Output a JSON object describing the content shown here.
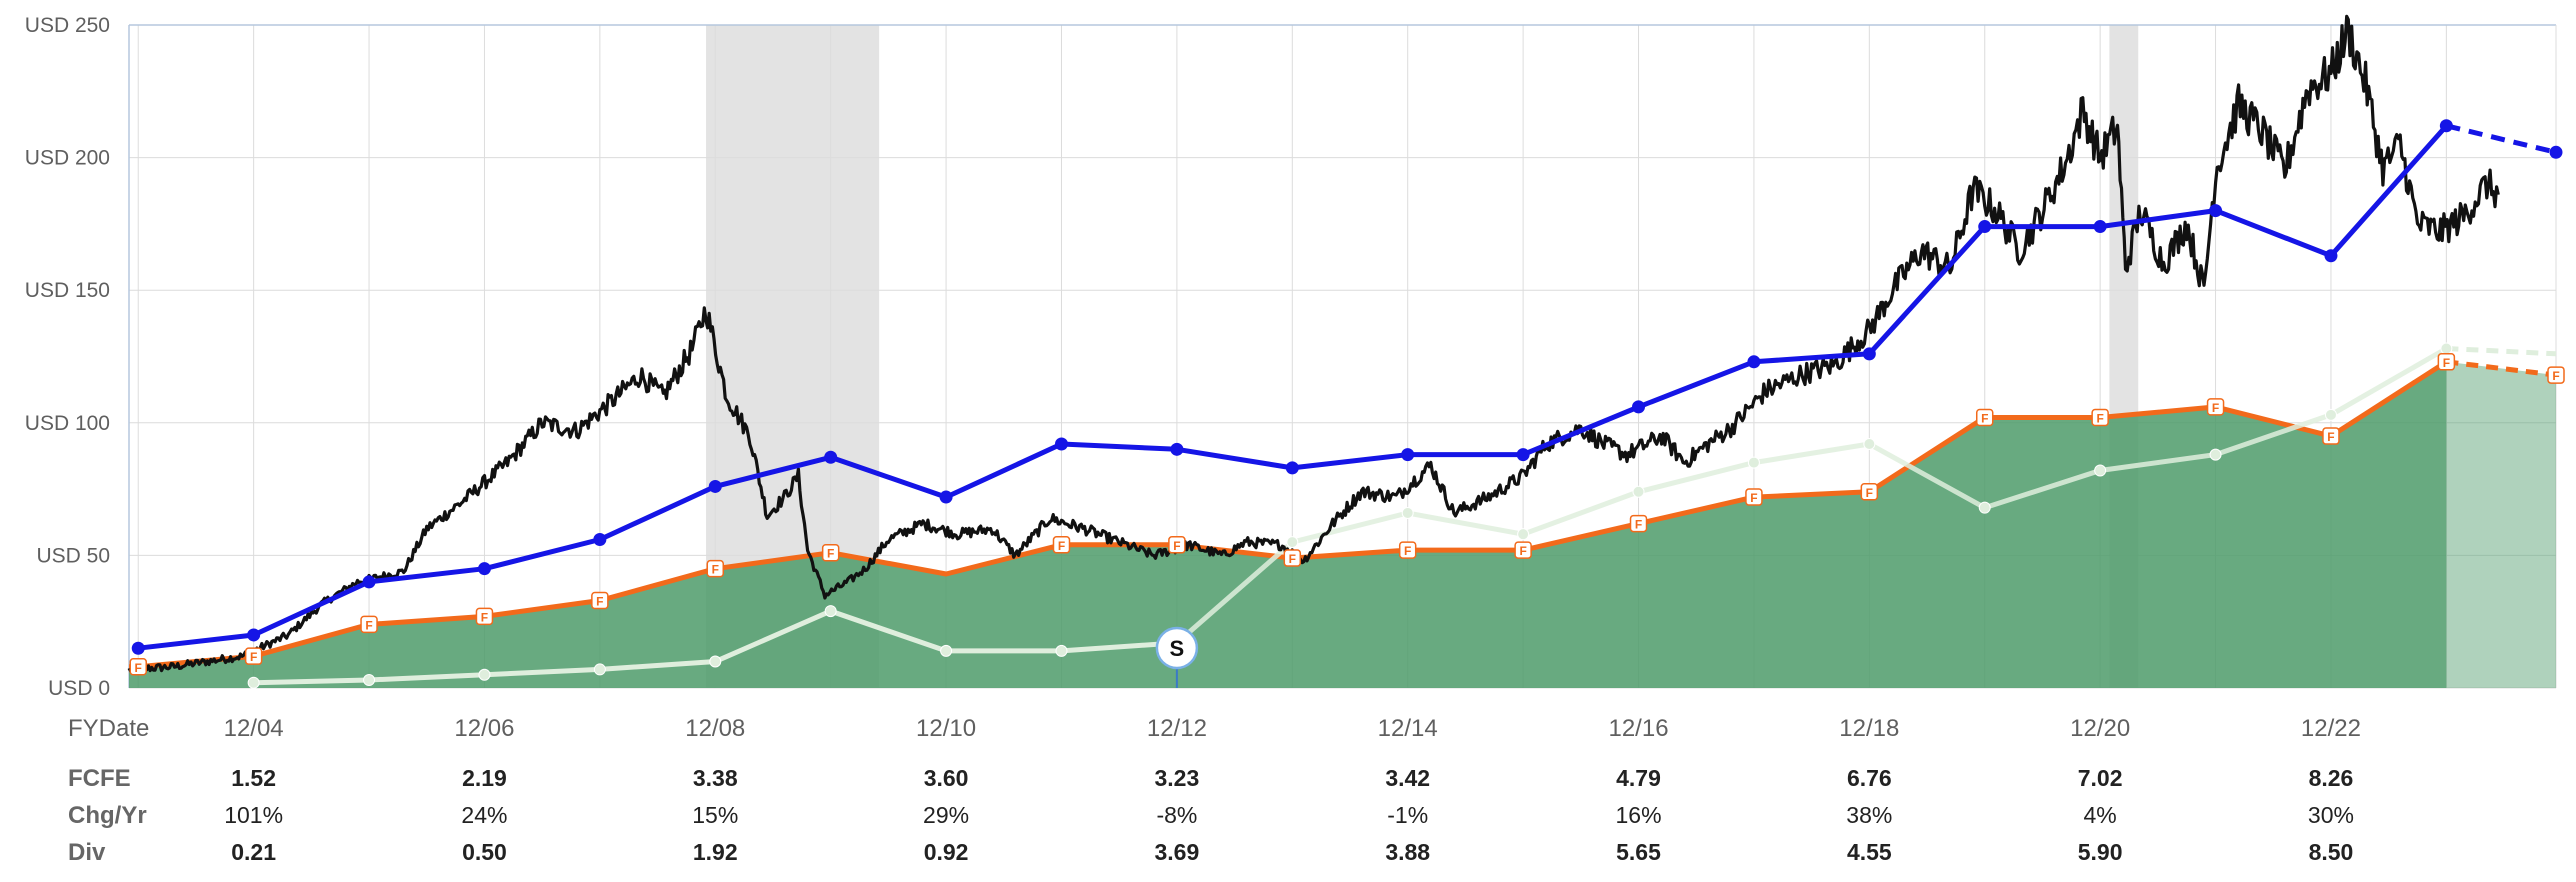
{
  "chart_data": {
    "type": "line",
    "y_axis": {
      "min": 0,
      "max": 250,
      "ticks": [
        {
          "value": 0,
          "label": "USD 0"
        },
        {
          "value": 50,
          "label": "USD 50"
        },
        {
          "value": 100,
          "label": "USD 100"
        },
        {
          "value": 150,
          "label": "USD 150"
        },
        {
          "value": 200,
          "label": "USD 200"
        },
        {
          "value": 250,
          "label": "USD 250"
        }
      ]
    },
    "x_axis": {
      "min": 2002.92,
      "max": 2023.95,
      "first_label": "FYDate",
      "ticks": [
        {
          "value": 2004,
          "label": "12/04"
        },
        {
          "value": 2006,
          "label": "12/06"
        },
        {
          "value": 2008,
          "label": "12/08"
        },
        {
          "value": 2010,
          "label": "12/10"
        },
        {
          "value": 2012,
          "label": "12/12"
        },
        {
          "value": 2014,
          "label": "12/14"
        },
        {
          "value": 2016,
          "label": "12/16"
        },
        {
          "value": 2018,
          "label": "12/18"
        },
        {
          "value": 2020,
          "label": "12/20"
        },
        {
          "value": 2022,
          "label": "12/22"
        }
      ],
      "minor_ticks": [
        2003,
        2005,
        2007,
        2009,
        2011,
        2013,
        2015,
        2017,
        2019,
        2021,
        2023,
        2023.95
      ]
    },
    "recessions": [
      [
        2007.92,
        2009.42
      ],
      [
        2020.08,
        2020.33
      ]
    ],
    "fair_value_area": {
      "color": "#4e9b6a",
      "points": [
        [
          2002.92,
          8
        ],
        [
          2003,
          8
        ],
        [
          2004,
          12
        ],
        [
          2005,
          24
        ],
        [
          2006,
          27
        ],
        [
          2007,
          33
        ],
        [
          2008,
          45
        ],
        [
          2009,
          51
        ],
        [
          2010,
          43
        ],
        [
          2011,
          54
        ],
        [
          2012,
          54
        ],
        [
          2013,
          49
        ],
        [
          2014,
          52
        ],
        [
          2015,
          52
        ],
        [
          2016,
          62
        ],
        [
          2017,
          72
        ],
        [
          2018,
          74
        ],
        [
          2019,
          102
        ],
        [
          2020,
          102
        ],
        [
          2021,
          106
        ],
        [
          2022,
          95
        ],
        [
          2023,
          123
        ]
      ],
      "estimate_points": [
        [
          2023,
          123
        ],
        [
          2023.95,
          118
        ]
      ],
      "markers": [
        "2003",
        "2004",
        "2005",
        "2006",
        "2007",
        "2008",
        "2009",
        "2011",
        "2012",
        "2013",
        "2014",
        "2015",
        "2016",
        "2017",
        "2018",
        "2019",
        "2020",
        "2021",
        "2022",
        "2023",
        "2023.95"
      ],
      "marker_label": "F"
    },
    "series": [
      {
        "key": "blue",
        "color": "#1515e6",
        "points": [
          [
            2003,
            15
          ],
          [
            2004,
            20
          ],
          [
            2005,
            40
          ],
          [
            2006,
            45
          ],
          [
            2007,
            56
          ],
          [
            2008,
            76
          ],
          [
            2009,
            87
          ],
          [
            2010,
            72
          ],
          [
            2011,
            92
          ],
          [
            2012,
            90
          ],
          [
            2013,
            83
          ],
          [
            2014,
            88
          ],
          [
            2015,
            88
          ],
          [
            2016,
            106
          ],
          [
            2017,
            123
          ],
          [
            2018,
            126
          ],
          [
            2019,
            174
          ],
          [
            2020,
            174
          ],
          [
            2021,
            180
          ],
          [
            2022,
            163
          ],
          [
            2023,
            212
          ]
        ],
        "estimate_points": [
          [
            2023,
            212
          ],
          [
            2023.95,
            202
          ]
        ]
      },
      {
        "key": "white",
        "color": "#dfeedd",
        "points": [
          [
            2004,
            2
          ],
          [
            2005,
            3
          ],
          [
            2006,
            5
          ],
          [
            2007,
            7
          ],
          [
            2008,
            10
          ],
          [
            2009,
            29
          ],
          [
            2010,
            14
          ],
          [
            2011,
            14
          ],
          [
            2012,
            17
          ],
          [
            2013,
            55
          ],
          [
            2014,
            66
          ],
          [
            2015,
            58
          ],
          [
            2016,
            74
          ],
          [
            2017,
            85
          ],
          [
            2018,
            92
          ],
          [
            2019,
            68
          ],
          [
            2020,
            82
          ],
          [
            2021,
            88
          ],
          [
            2022,
            103
          ],
          [
            2023,
            128
          ]
        ],
        "estimate_points": [
          [
            2023,
            128
          ],
          [
            2023.95,
            126
          ]
        ],
        "hidden_segment": [
          2012,
          2014
        ]
      },
      {
        "key": "price",
        "color": "#111111",
        "anchors": [
          [
            2002.92,
            7
          ],
          [
            2003.3,
            8
          ],
          [
            2003.6,
            10
          ],
          [
            2003.9,
            12
          ],
          [
            2004.3,
            20
          ],
          [
            2004.6,
            32
          ],
          [
            2004.9,
            40
          ],
          [
            2005.3,
            44
          ],
          [
            2005.5,
            60
          ],
          [
            2005.8,
            70
          ],
          [
            2006.2,
            85
          ],
          [
            2006.5,
            100
          ],
          [
            2006.8,
            97
          ],
          [
            2007.1,
            108
          ],
          [
            2007.35,
            118
          ],
          [
            2007.55,
            110
          ],
          [
            2007.8,
            128
          ],
          [
            2007.92,
            143
          ],
          [
            2008.1,
            110
          ],
          [
            2008.3,
            95
          ],
          [
            2008.45,
            65
          ],
          [
            2008.6,
            72
          ],
          [
            2008.72,
            80
          ],
          [
            2008.8,
            52
          ],
          [
            2008.95,
            35
          ],
          [
            2009.15,
            40
          ],
          [
            2009.3,
            45
          ],
          [
            2009.5,
            56
          ],
          [
            2009.8,
            62
          ],
          [
            2010.1,
            58
          ],
          [
            2010.4,
            60
          ],
          [
            2010.6,
            50
          ],
          [
            2010.9,
            64
          ],
          [
            2011.2,
            60
          ],
          [
            2011.5,
            55
          ],
          [
            2011.8,
            50
          ],
          [
            2012.1,
            54
          ],
          [
            2012.4,
            50
          ],
          [
            2012.6,
            55
          ],
          [
            2012.9,
            54
          ],
          [
            2013.1,
            48
          ],
          [
            2013.35,
            62
          ],
          [
            2013.6,
            74
          ],
          [
            2013.9,
            72
          ],
          [
            2014.2,
            84
          ],
          [
            2014.4,
            66
          ],
          [
            2014.7,
            72
          ],
          [
            2015.0,
            80
          ],
          [
            2015.2,
            92
          ],
          [
            2015.5,
            98
          ],
          [
            2015.7,
            92
          ],
          [
            2015.9,
            88
          ],
          [
            2016.2,
            95
          ],
          [
            2016.4,
            85
          ],
          [
            2016.6,
            92
          ],
          [
            2016.8,
            98
          ],
          [
            2017.1,
            112
          ],
          [
            2017.4,
            118
          ],
          [
            2017.7,
            122
          ],
          [
            2018.0,
            135
          ],
          [
            2018.2,
            150
          ],
          [
            2018.45,
            165
          ],
          [
            2018.7,
            158
          ],
          [
            2018.9,
            188
          ],
          [
            2019.1,
            180
          ],
          [
            2019.3,
            165
          ],
          [
            2019.5,
            180
          ],
          [
            2019.7,
            198
          ],
          [
            2019.85,
            218
          ],
          [
            2020.0,
            200
          ],
          [
            2020.15,
            212
          ],
          [
            2020.22,
            158
          ],
          [
            2020.35,
            180
          ],
          [
            2020.55,
            160
          ],
          [
            2020.75,
            175
          ],
          [
            2020.9,
            150
          ],
          [
            2021.0,
            195
          ],
          [
            2021.2,
            220
          ],
          [
            2021.4,
            210
          ],
          [
            2021.6,
            195
          ],
          [
            2021.8,
            226
          ],
          [
            2022.0,
            232
          ],
          [
            2022.15,
            248
          ],
          [
            2022.3,
            228
          ],
          [
            2022.45,
            196
          ],
          [
            2022.6,
            205
          ],
          [
            2022.75,
            175
          ],
          [
            2022.95,
            172
          ],
          [
            2023.15,
            178
          ],
          [
            2023.35,
            190
          ],
          [
            2023.45,
            186
          ]
        ]
      }
    ],
    "flag": {
      "x": 2012,
      "label": "S"
    }
  },
  "table": {
    "header_label": "FYDate",
    "columns": [
      "2004",
      "2006",
      "2008",
      "2010",
      "2012",
      "2014",
      "2016",
      "2018",
      "2020",
      "2022"
    ],
    "rows": [
      {
        "label": "FCFE",
        "bold": true,
        "values": [
          "1.52",
          "2.19",
          "3.38",
          "3.60",
          "3.23",
          "3.42",
          "4.79",
          "6.76",
          "7.02",
          "8.26"
        ],
        "negative": []
      },
      {
        "label": "Chg/Yr",
        "bold": false,
        "values": [
          "101%",
          "24%",
          "15%",
          "29%",
          "-8%",
          "-1%",
          "16%",
          "38%",
          "4%",
          "30%"
        ],
        "negative": [
          4,
          5
        ],
        "negative_color": "#c00000"
      },
      {
        "label": "Div",
        "bold": true,
        "values": [
          "0.21",
          "0.50",
          "1.92",
          "0.92",
          "3.69",
          "3.88",
          "5.65",
          "4.55",
          "5.90",
          "8.50"
        ],
        "negative": []
      }
    ]
  }
}
